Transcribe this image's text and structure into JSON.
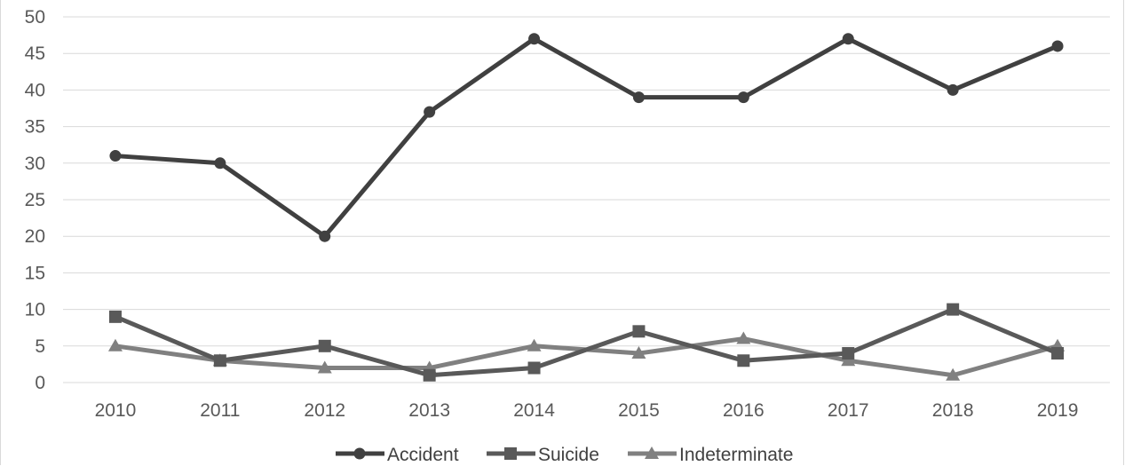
{
  "chart_data": {
    "type": "line",
    "categories": [
      "2010",
      "2011",
      "2012",
      "2013",
      "2014",
      "2015",
      "2016",
      "2017",
      "2018",
      "2019"
    ],
    "yticks": [
      0,
      5,
      10,
      15,
      20,
      25,
      30,
      35,
      40,
      45,
      50
    ],
    "ylim": [
      0,
      50
    ],
    "grid": true,
    "legend_position": "bottom",
    "series": [
      {
        "name": "Accident",
        "values": [
          31,
          30,
          20,
          37,
          47,
          39,
          39,
          47,
          40,
          46
        ],
        "color": "#404040",
        "marker": "circle"
      },
      {
        "name": "Suicide",
        "values": [
          9,
          3,
          5,
          1,
          2,
          7,
          3,
          4,
          10,
          4
        ],
        "color": "#595959",
        "marker": "square"
      },
      {
        "name": "Indeterminate",
        "values": [
          5,
          3,
          2,
          2,
          5,
          4,
          6,
          3,
          1,
          5
        ],
        "color": "#808080",
        "marker": "triangle"
      }
    ]
  }
}
